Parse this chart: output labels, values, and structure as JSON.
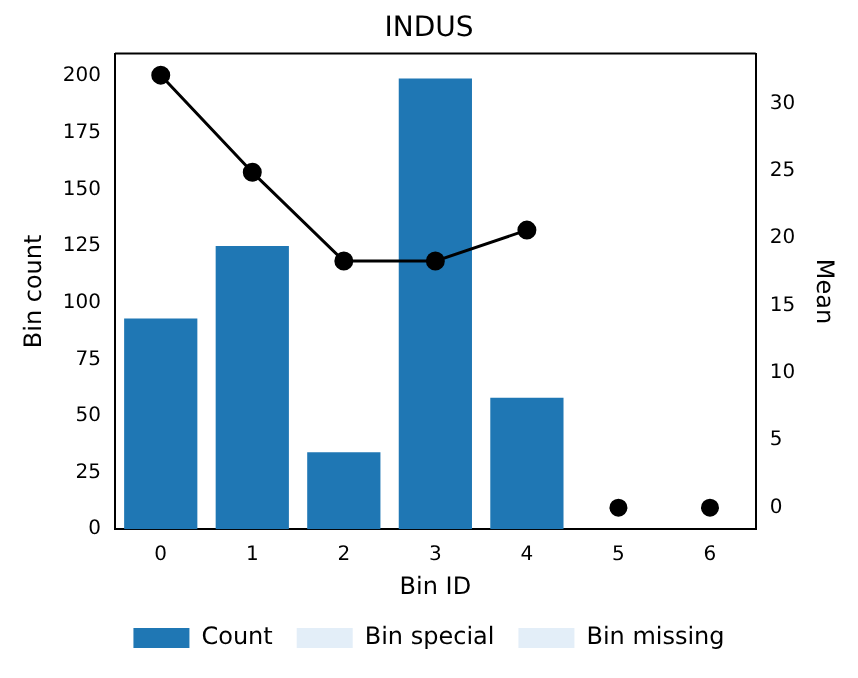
{
  "chart_data": {
    "type": "bar",
    "title": "INDUS",
    "xlabel": "Bin ID",
    "ylabel": "Bin count",
    "y2label": "Mean",
    "categories": [
      "0",
      "1",
      "2",
      "3",
      "4",
      "5",
      "6"
    ],
    "series": [
      {
        "name": "Count",
        "color": "#1f77b4",
        "values": [
          93,
          125,
          34,
          199,
          58,
          null,
          null
        ]
      },
      {
        "name": "Bin special",
        "color": "#e3eef8",
        "values": [
          null,
          null,
          null,
          null,
          null,
          0,
          null
        ]
      },
      {
        "name": "Bin missing",
        "color": "#e3eef8",
        "values": [
          null,
          null,
          null,
          null,
          null,
          null,
          0
        ]
      },
      {
        "type": "line",
        "axis": "y2",
        "color": "#000000",
        "marker": "circle",
        "values": [
          32.1,
          24.9,
          18.3,
          18.3,
          20.6,
          null,
          null
        ]
      },
      {
        "type": "scatter",
        "axis": "y2",
        "color": "#000000",
        "marker": "circle",
        "values": [
          null,
          null,
          null,
          null,
          null,
          0,
          0
        ]
      }
    ],
    "ylim": [
      0,
      210
    ],
    "yticks": [
      0,
      25,
      50,
      75,
      100,
      125,
      150,
      175,
      200
    ],
    "y2lim": [
      -1.6,
      33.7
    ],
    "y2ticks": [
      0,
      5,
      10,
      15,
      20,
      25,
      30
    ],
    "grid": false,
    "legend": "bottom"
  }
}
